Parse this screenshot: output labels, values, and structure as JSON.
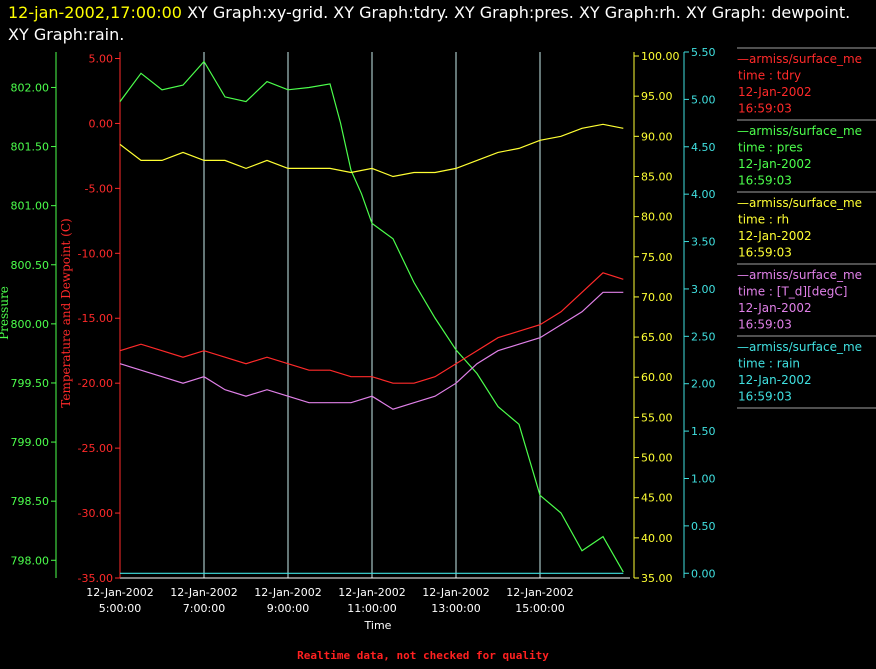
{
  "header": {
    "datetime": "12-jan-2002,17:00:00",
    "title": "XY Graph:xy-grid.  XY Graph:tdry.  XY Graph:pres.  XY Graph:rh.  XY Graph: dewpoint.  XY Graph:rain."
  },
  "footer": {
    "note": "Realtime data, not checked for quality"
  },
  "colors": {
    "background": "#000000",
    "grid": "#c8ecec",
    "tdry": "#ff2a2a",
    "pres": "#4cff4c",
    "rh": "#ffff33",
    "dewpoint": "#e080e8",
    "rain": "#40e0e0"
  },
  "legend": [
    {
      "name": "—armiss/surface_me",
      "sub": "time : tdry",
      "date": "12-Jan-2002",
      "time": "16:59:03",
      "color": "#ff2a2a"
    },
    {
      "name": "—armiss/surface_me",
      "sub": "time : pres",
      "date": "12-Jan-2002",
      "time": "16:59:03",
      "color": "#4cff4c"
    },
    {
      "name": "—armiss/surface_me",
      "sub": "time : rh",
      "date": "12-Jan-2002",
      "time": "16:59:03",
      "color": "#ffff33"
    },
    {
      "name": "—armiss/surface_me",
      "sub": "time : [T_d][degC]",
      "date": "12-Jan-2002",
      "time": "16:59:03",
      "color": "#e080e8"
    },
    {
      "name": "—armiss/surface_me",
      "sub": "time : rain",
      "date": "12-Jan-2002",
      "time": "16:59:03",
      "color": "#40e0e0"
    }
  ],
  "chart_data": {
    "type": "line",
    "grid": "vertical lines at x ticks",
    "legend_placement": "right",
    "x": {
      "label": "Time",
      "range": [
        "2002-01-12T05:00:00",
        "2002-01-12T17:00:00"
      ],
      "tick_labels": [
        {
          "at": "2002-01-12T05:00:00",
          "date": "12-Jan-2002",
          "time": "5:00:00"
        },
        {
          "at": "2002-01-12T07:00:00",
          "date": "12-Jan-2002",
          "time": "7:00:00"
        },
        {
          "at": "2002-01-12T09:00:00",
          "date": "12-Jan-2002",
          "time": "9:00:00"
        },
        {
          "at": "2002-01-12T11:00:00",
          "date": "12-Jan-2002",
          "time": "11:00:00"
        },
        {
          "at": "2002-01-12T13:00:00",
          "date": "12-Jan-2002",
          "time": "13:00:00"
        },
        {
          "at": "2002-01-12T15:00:00",
          "date": "12-Jan-2002",
          "time": "15:00:00"
        }
      ]
    },
    "axes": [
      {
        "id": "pres",
        "label": "Pressure",
        "color": "#4cff4c",
        "range": [
          797.85,
          802.3
        ],
        "ticks": [
          "798.00",
          "798.50",
          "799.00",
          "799.50",
          "800.00",
          "800.50",
          "801.00",
          "801.50",
          "802.00"
        ]
      },
      {
        "id": "temp",
        "label": "Temperature and Dewpoint (C)",
        "color": "#ff2a2a",
        "range": [
          -35,
          5.5
        ],
        "ticks": [
          "-35.00",
          "-30.00",
          "-25.00",
          "-20.00",
          "-15.00",
          "-10.00",
          "-5.00",
          "0.00",
          "5.00"
        ]
      },
      {
        "id": "rh",
        "label": "",
        "color": "#ffff33",
        "range": [
          35,
          100.5
        ],
        "ticks": [
          "35.00",
          "40.00",
          "45.00",
          "50.00",
          "55.00",
          "60.00",
          "65.00",
          "70.00",
          "75.00",
          "80.00",
          "85.00",
          "90.00",
          "95.00",
          "100.00"
        ]
      },
      {
        "id": "rain",
        "label": "",
        "color": "#40e0e0",
        "range": [
          -0.05,
          5.5
        ],
        "ticks": [
          "0.00",
          "0.50",
          "1.00",
          "1.50",
          "2.00",
          "2.50",
          "3.00",
          "3.50",
          "4.00",
          "4.50",
          "5.00",
          "5.50"
        ]
      }
    ],
    "series": [
      {
        "key": "pres",
        "axis": "pres",
        "color": "#4cff4c",
        "x": [
          "05:00",
          "05:30",
          "06:00",
          "06:30",
          "07:00",
          "07:30",
          "08:00",
          "08:30",
          "09:00",
          "09:30",
          "10:00",
          "10:15",
          "10:30",
          "10:45",
          "11:00",
          "11:30",
          "12:00",
          "12:30",
          "13:00",
          "13:30",
          "14:00",
          "14:30",
          "15:00",
          "15:30",
          "16:00",
          "16:30",
          "16:59"
        ],
        "values": [
          801.88,
          802.12,
          801.98,
          802.02,
          802.22,
          801.92,
          801.88,
          802.05,
          801.98,
          802.0,
          802.03,
          801.7,
          801.3,
          801.1,
          800.85,
          800.72,
          800.35,
          800.05,
          799.78,
          799.58,
          799.3,
          799.15,
          798.55,
          798.4,
          798.08,
          798.2,
          797.9
        ]
      },
      {
        "key": "tdry",
        "axis": "temp",
        "color": "#ff2a2a",
        "x": [
          "05:00",
          "05:30",
          "06:00",
          "06:30",
          "07:00",
          "07:30",
          "08:00",
          "08:30",
          "09:00",
          "09:30",
          "10:00",
          "10:30",
          "11:00",
          "11:30",
          "12:00",
          "12:30",
          "13:00",
          "13:30",
          "14:00",
          "14:30",
          "15:00",
          "15:30",
          "16:00",
          "16:30",
          "16:59"
        ],
        "values": [
          -17.5,
          -17.0,
          -17.5,
          -18.0,
          -17.5,
          -18.0,
          -18.5,
          -18.0,
          -18.5,
          -19.0,
          -19.0,
          -19.5,
          -19.5,
          -20.0,
          -20.0,
          -19.5,
          -18.5,
          -17.5,
          -16.5,
          -16.0,
          -15.5,
          -14.5,
          -13.0,
          -11.5,
          -12.0
        ]
      },
      {
        "key": "rh",
        "axis": "rh",
        "color": "#ffff33",
        "x": [
          "05:00",
          "05:30",
          "06:00",
          "06:30",
          "07:00",
          "07:30",
          "08:00",
          "08:30",
          "09:00",
          "09:30",
          "10:00",
          "10:30",
          "11:00",
          "11:30",
          "12:00",
          "12:30",
          "13:00",
          "13:30",
          "14:00",
          "14:30",
          "15:00",
          "15:30",
          "16:00",
          "16:30",
          "16:59"
        ],
        "values": [
          89,
          87,
          87,
          88,
          87,
          87,
          86,
          87,
          86,
          86,
          86,
          85.5,
          86,
          85,
          85.5,
          85.5,
          86,
          87,
          88,
          88.5,
          89.5,
          90,
          91,
          91.5,
          91
        ]
      },
      {
        "key": "dewpoint",
        "axis": "temp",
        "color": "#e080e8",
        "x": [
          "05:00",
          "05:30",
          "06:00",
          "06:30",
          "07:00",
          "07:30",
          "08:00",
          "08:30",
          "09:00",
          "09:30",
          "10:00",
          "10:30",
          "11:00",
          "11:30",
          "12:00",
          "12:30",
          "13:00",
          "13:30",
          "14:00",
          "14:30",
          "15:00",
          "15:30",
          "16:00",
          "16:30",
          "16:59"
        ],
        "values": [
          -18.5,
          -19.0,
          -19.5,
          -20.0,
          -19.5,
          -20.5,
          -21.0,
          -20.5,
          -21.0,
          -21.5,
          -21.5,
          -21.5,
          -21.0,
          -22.0,
          -21.5,
          -21.0,
          -20.0,
          -18.5,
          -17.5,
          -17.0,
          -16.5,
          -15.5,
          -14.5,
          -13.0,
          -13.0
        ]
      },
      {
        "key": "rain",
        "axis": "rain",
        "color": "#40e0e0",
        "x": [
          "05:00",
          "16:59"
        ],
        "values": [
          0.0,
          0.0
        ]
      }
    ]
  }
}
